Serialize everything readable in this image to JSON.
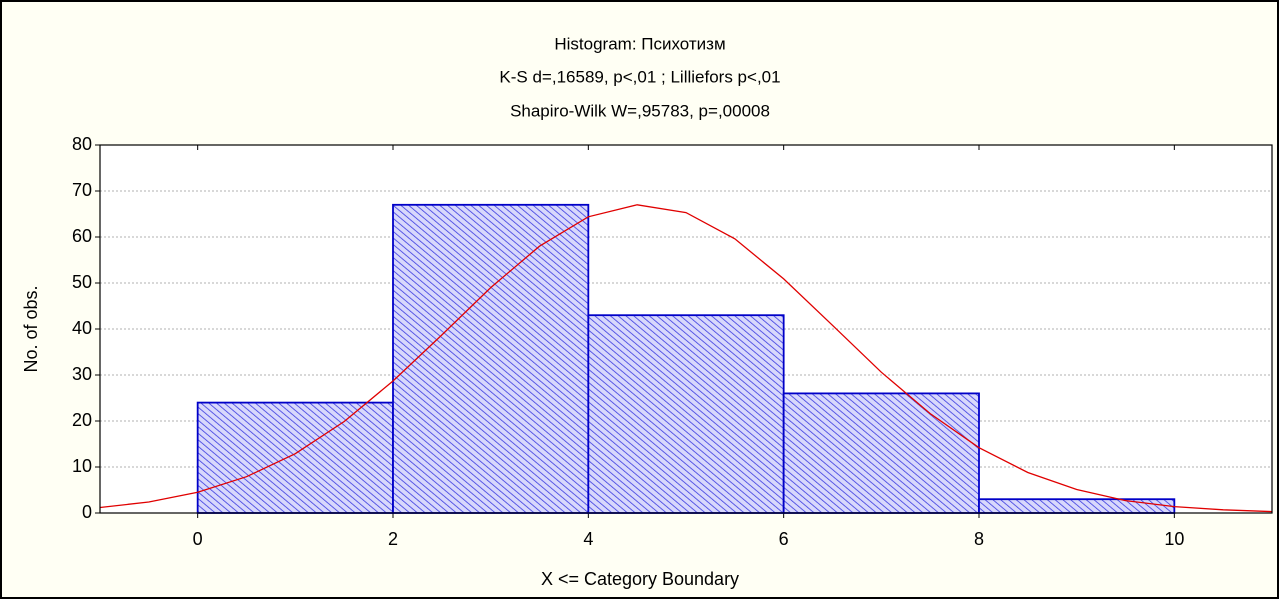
{
  "chart_data": {
    "type": "histogram",
    "title": "Histogram: Психотизм",
    "subtitle": [
      "K-S d=,16589, p<,01 ; Lilliefors p<,01",
      "Shapiro-Wilk W=,95783, p=,00008"
    ],
    "x_label": "X <= Category Boundary",
    "y_label": "No. of obs.",
    "bins": [
      0,
      2,
      4,
      6,
      8,
      10
    ],
    "values": [
      24,
      67,
      43,
      26,
      3
    ],
    "color": "#0000c8",
    "xlim": [
      -1,
      11
    ],
    "xticks": [
      0,
      2,
      4,
      6,
      8,
      10
    ],
    "ylim": [
      0,
      80
    ],
    "yticks": [
      0,
      10,
      20,
      30,
      40,
      50,
      60,
      70,
      80
    ],
    "grid": true,
    "curve": {
      "color": "#e00000",
      "x": [
        -1,
        -0.5,
        0,
        0.5,
        1,
        1.5,
        2,
        2.5,
        3,
        3.5,
        4,
        4.5,
        5,
        5.5,
        6,
        6.5,
        7,
        7.5,
        8,
        8.5,
        9,
        9.5,
        10,
        10.5,
        11
      ],
      "values": [
        1.2,
        2.4,
        4.5,
        7.9,
        12.9,
        19.9,
        28.7,
        38.7,
        49.0,
        58.0,
        64.4,
        67.0,
        65.3,
        59.6,
        50.9,
        40.8,
        30.6,
        21.6,
        14.2,
        8.8,
        5.1,
        2.7,
        1.4,
        0.7,
        0.3
      ]
    }
  }
}
